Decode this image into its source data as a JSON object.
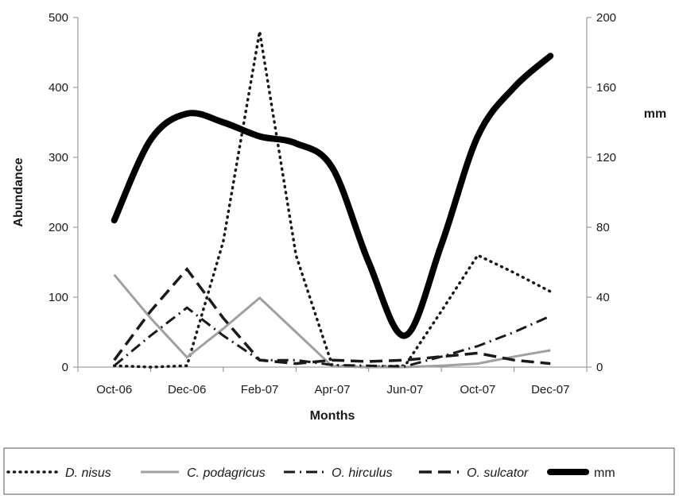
{
  "chart_data": {
    "type": "line",
    "title": "",
    "xlabel": "Months",
    "ylabel": "Abundance",
    "y2label": "mm",
    "categories": [
      "Oct-06",
      "Dec-06",
      "Feb-07",
      "Apr-07",
      "Jun-07",
      "Oct-07",
      "Dec-07"
    ],
    "ylim": [
      0,
      500
    ],
    "y_ticks": [
      0,
      100,
      200,
      300,
      400,
      500
    ],
    "y2lim": [
      0,
      200
    ],
    "y2_ticks": [
      0,
      40,
      80,
      120,
      160,
      200
    ],
    "x": [
      0,
      0.5,
      1,
      1.5,
      2,
      2.5,
      3,
      3.5,
      4,
      4.5,
      5,
      5.5,
      6
    ],
    "series": [
      {
        "name": "D. nisus",
        "axis": "left",
        "style": "dotted",
        "color": "#1a1a1a",
        "values": [
          2,
          0,
          2,
          180,
          480,
          160,
          2,
          0,
          2,
          80,
          160,
          135,
          108
        ]
      },
      {
        "name": "C. podagricus",
        "axis": "left",
        "style": "solid-thin",
        "color": "#a0a0a0",
        "values": [
          132,
          70,
          14,
          55,
          99,
          50,
          1,
          0,
          0,
          2,
          5,
          15,
          24
        ]
      },
      {
        "name": "O. hirculus",
        "axis": "left",
        "style": "dash-dot",
        "color": "#1a1a1a",
        "values": [
          2,
          45,
          85,
          45,
          10,
          10,
          3,
          2,
          1,
          15,
          30,
          50,
          73
        ]
      },
      {
        "name": "O. sulcator",
        "axis": "left",
        "style": "dashed",
        "color": "#1a1a1a",
        "values": [
          10,
          80,
          140,
          70,
          10,
          5,
          10,
          8,
          10,
          15,
          20,
          10,
          5
        ]
      },
      {
        "name": "mm",
        "axis": "right",
        "style": "solid-thick",
        "color": "#000000",
        "values": [
          84,
          130,
          145,
          140,
          132,
          128,
          114,
          60,
          18,
          70,
          132,
          160,
          178
        ]
      }
    ],
    "legend": {
      "position": "bottom",
      "entries": [
        "D. nisus",
        "C. podagricus",
        "O. hirculus",
        "O. sulcator",
        "mm"
      ]
    },
    "grid": false
  }
}
